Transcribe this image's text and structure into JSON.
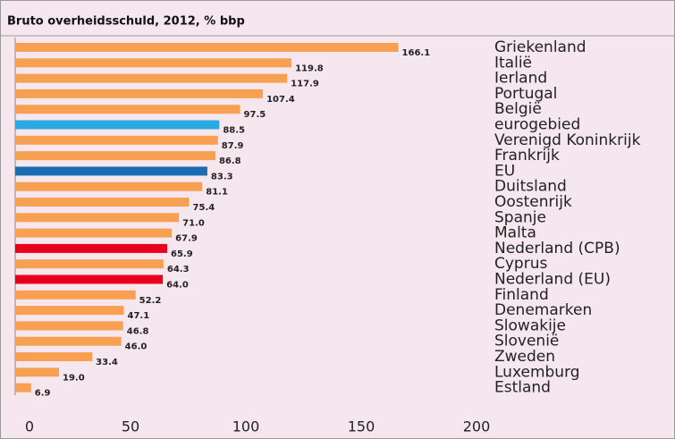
{
  "chart_data": {
    "type": "barh",
    "title": "Bruto overheidsschuld, 2012, % bbp",
    "categories": [
      "Griekenland",
      "Italië",
      "Ierland",
      "Portugal",
      "België",
      "eurogebied",
      "Verenigd Koninkrijk",
      "Frankrijk",
      "EU",
      "Duitsland",
      "Oostenrijk",
      "Spanje",
      "Malta",
      "Nederland (CPB)",
      "Cyprus",
      "Nederland (EU)",
      "Finland",
      "Denemarken",
      "Slowakije",
      "Slovenië",
      "Zweden",
      "Luxemburg",
      "Estland"
    ],
    "values": [
      166.1,
      119.8,
      117.9,
      107.4,
      97.5,
      88.5,
      87.9,
      86.8,
      83.3,
      81.1,
      75.4,
      71.0,
      67.9,
      65.9,
      64.3,
      64.0,
      52.2,
      47.1,
      46.8,
      46.0,
      33.4,
      19.0,
      6.9
    ],
    "value_labels": [
      "166.1",
      "119.8",
      "117.9",
      "107.4",
      "97.5",
      "88.5",
      "87.9",
      "86.8",
      "83.3",
      "81.1",
      "75.4",
      "71.0",
      "67.9",
      "65.9",
      "64.3",
      "64.0",
      "52.2",
      "47.1",
      "46.8",
      "46.0",
      "33.4",
      "19.0",
      "6.9"
    ],
    "colors": [
      "#f7a052",
      "#f7a052",
      "#f7a052",
      "#f7a052",
      "#f7a052",
      "#29aae2",
      "#f7a052",
      "#f7a052",
      "#1b6db3",
      "#f7a052",
      "#f7a052",
      "#f7a052",
      "#f7a052",
      "#e8001c",
      "#f7a052",
      "#e8001c",
      "#f7a052",
      "#f7a052",
      "#f7a052",
      "#f7a052",
      "#f7a052",
      "#f7a052",
      "#f7a052"
    ],
    "xlim": [
      0,
      200
    ],
    "xticks": [
      0,
      50,
      100,
      150,
      200
    ]
  }
}
